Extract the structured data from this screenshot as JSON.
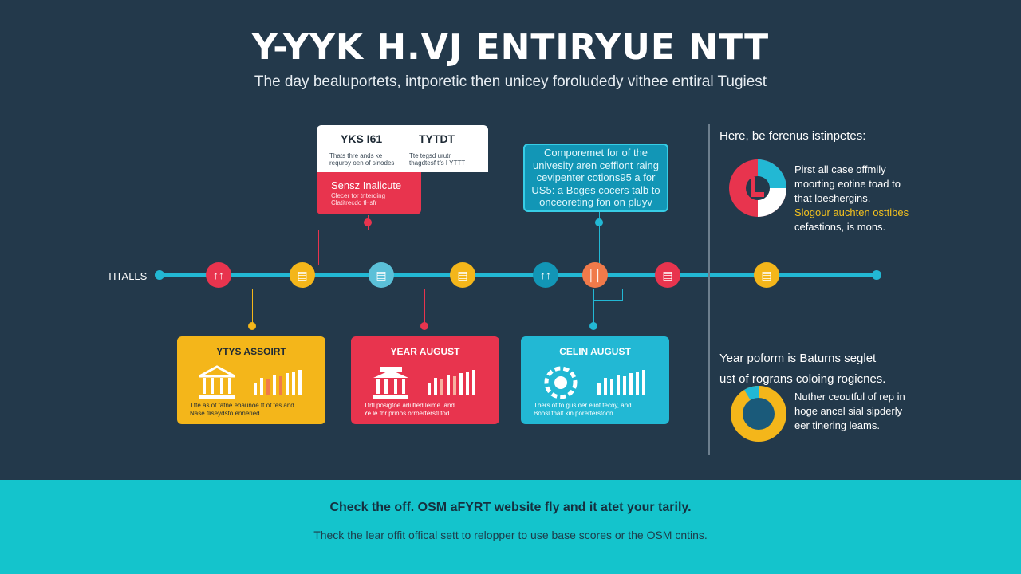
{
  "header": {
    "title": "Y-YYK H.VJ ENTIRYUE NTT",
    "subtitle": "The day bealuportets, intporetic then unicey foroludedy vithee entiral Tugiest"
  },
  "timeline": {
    "label": "TITALLS",
    "nodes": [
      {
        "icon": "chart-icon",
        "color": "#e8344e",
        "glyph": "↑↑"
      },
      {
        "icon": "building-icon",
        "color": "#f4b61a",
        "glyph": "▤"
      },
      {
        "icon": "document-icon",
        "color": "#5bc0d8",
        "glyph": "▤"
      },
      {
        "icon": "school-icon",
        "color": "#f4b61a",
        "glyph": "▤"
      },
      {
        "icon": "chart-icon",
        "color": "#1296b6",
        "glyph": "↑↑"
      },
      {
        "icon": "chart-icon",
        "color": "#f07a4a",
        "glyph": "││"
      },
      {
        "icon": "bus-icon",
        "color": "#e8344e",
        "glyph": "▤"
      },
      {
        "icon": "card-icon",
        "color": "#f4b61a",
        "glyph": "▤"
      }
    ]
  },
  "callout_top_left": {
    "col1_title": "YKS I61",
    "col1_note": "Thats thre ands ke\nrequroy oen of sinodes",
    "col2_title": "TYTDT",
    "col2_note": "Tte tegsd urutr\nthagdtesf tfs I YTTT",
    "red_title": "Sensz Inalicute",
    "red_note": "Clecer tor tnterding\nClatitrecdo tHsfr"
  },
  "callout_top_right": {
    "lines": [
      "Comporemet for of the",
      "univesity aren ceffiont raing",
      "cevipenter cotions95 a for",
      "US5: a Boges cocers talb to",
      "onceoreting fon on pluyv"
    ]
  },
  "cards": [
    {
      "title": "YTYS ASSOIRT",
      "note": "Ttte as of tatne eoaunoe tt of tes and\nNase tliseydsto enneried",
      "color": "#f4b61a",
      "text_color": "#1e2a35",
      "icon": "museum-icon"
    },
    {
      "title": "YEAR AUGUST",
      "note": "Ttrtl posigtoe arlutled leime. and\nYe le fhr prinos orroerterstl tod",
      "color": "#e8344e",
      "text_color": "#ffffff",
      "icon": "museum-icon"
    },
    {
      "title": "CELIN AUGUST",
      "note": "Thers of fo gus der eliot tecoy, and\nBoosl fhalt kin porerterstoon",
      "color": "#22b8d4",
      "text_color": "#ffffff",
      "icon": "gear-icon"
    }
  ],
  "right_panel": {
    "heading1": "Here, be ferenus istinpetes:",
    "text1": [
      "Pirst all case offmily",
      "moorting eotine toad to",
      "that loeshergins,"
    ],
    "text1_highlight": "Slogour auchten osttibes",
    "text1_end": "cefastions, is mons.",
    "heading2": [
      "Year poform is Baturns seglet",
      "ust of rograns coloing rogicnes."
    ],
    "text2": [
      "Nuther ceoutful of rep in",
      "hoge ancel sial sipderly",
      "eer tinering leams."
    ],
    "pie1": [
      {
        "value": 0.18,
        "color": "#22b8d4"
      },
      {
        "value": 0.32,
        "color": "#ffffff"
      },
      {
        "value": 0.5,
        "color": "#e8344e"
      }
    ],
    "pie2": [
      {
        "value": 0.08,
        "color": "#22b8d4"
      },
      {
        "value": 0.92,
        "color": "#f4b61a"
      }
    ]
  },
  "footer": {
    "line1": "Check the off. OSM aFYRT website fly and it atet your tarily.",
    "line2": "Theck the lear offit offical sett to relopper to use base scores or the OSM cntins."
  }
}
